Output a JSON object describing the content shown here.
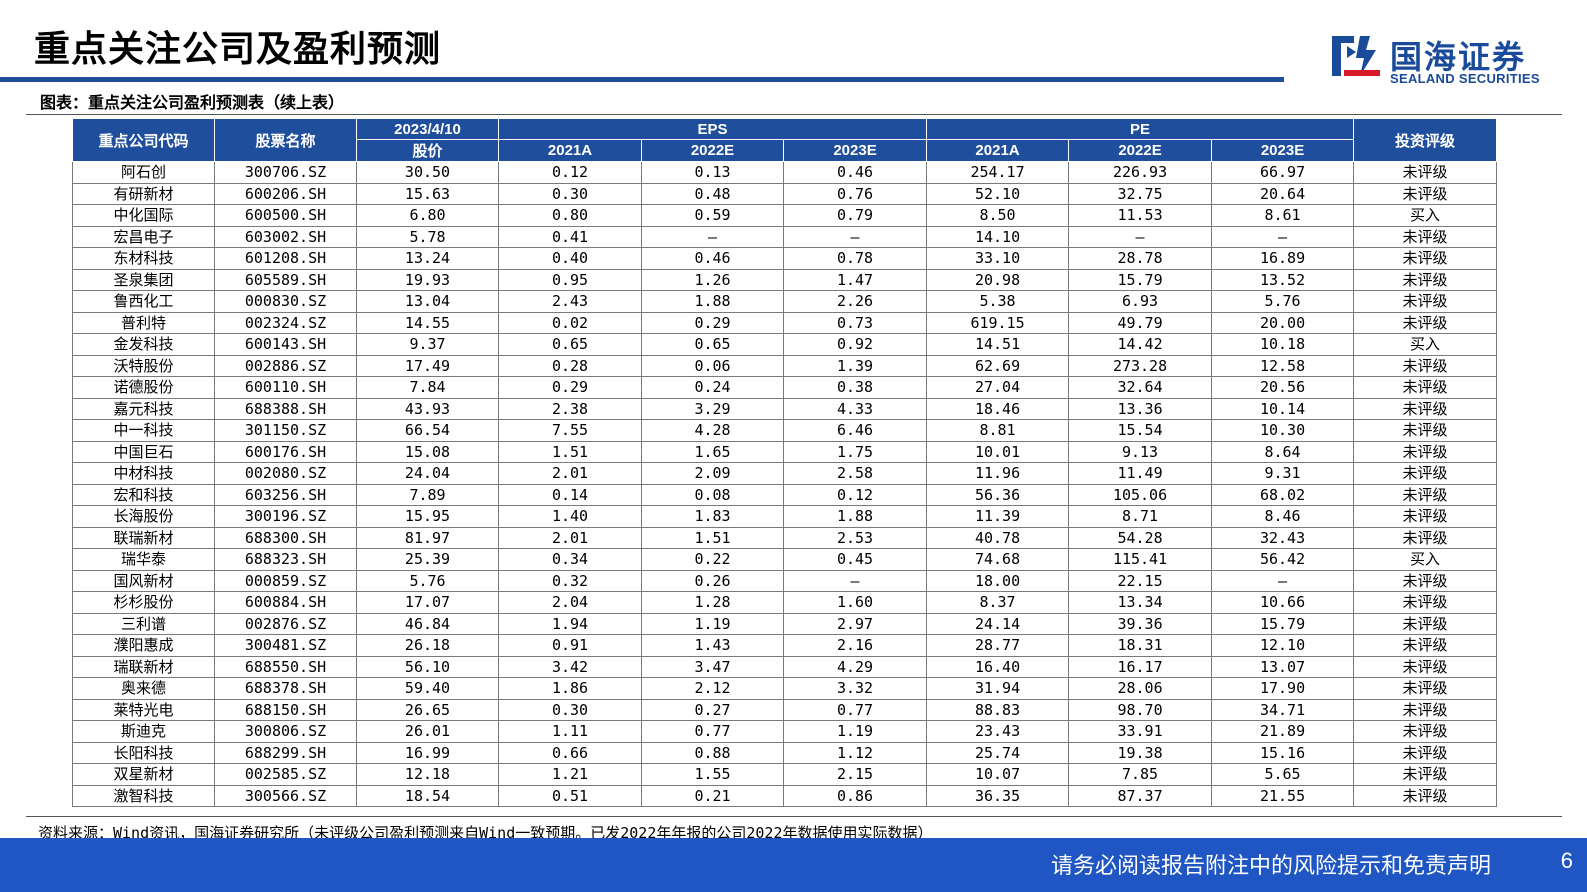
{
  "header": {
    "title": "重点关注公司及盈利预测",
    "logo_cn": "国海证券",
    "logo_en": "SEALAND SECURITIES"
  },
  "table_caption": "图表：重点关注公司盈利预测表（续上表）",
  "table": {
    "headers": {
      "code": "重点公司代码",
      "name": "股票名称",
      "date": "2023/4/10",
      "price": "股价",
      "eps": "EPS",
      "pe": "PE",
      "rating": "投资评级",
      "years": [
        "2021A",
        "2022E",
        "2023E"
      ]
    },
    "rows": [
      [
        "阿石创",
        "300706.SZ",
        "30.50",
        "0.12",
        "0.13",
        "0.46",
        "254.17",
        "226.93",
        "66.97",
        "未评级"
      ],
      [
        "有研新材",
        "600206.SH",
        "15.63",
        "0.30",
        "0.48",
        "0.76",
        "52.10",
        "32.75",
        "20.64",
        "未评级"
      ],
      [
        "中化国际",
        "600500.SH",
        "6.80",
        "0.80",
        "0.59",
        "0.79",
        "8.50",
        "11.53",
        "8.61",
        "买入"
      ],
      [
        "宏昌电子",
        "603002.SH",
        "5.78",
        "0.41",
        "–",
        "–",
        "14.10",
        "–",
        "–",
        "未评级"
      ],
      [
        "东材科技",
        "601208.SH",
        "13.24",
        "0.40",
        "0.46",
        "0.78",
        "33.10",
        "28.78",
        "16.89",
        "未评级"
      ],
      [
        "圣泉集团",
        "605589.SH",
        "19.93",
        "0.95",
        "1.26",
        "1.47",
        "20.98",
        "15.79",
        "13.52",
        "未评级"
      ],
      [
        "鲁西化工",
        "000830.SZ",
        "13.04",
        "2.43",
        "1.88",
        "2.26",
        "5.38",
        "6.93",
        "5.76",
        "未评级"
      ],
      [
        "普利特",
        "002324.SZ",
        "14.55",
        "0.02",
        "0.29",
        "0.73",
        "619.15",
        "49.79",
        "20.00",
        "未评级"
      ],
      [
        "金发科技",
        "600143.SH",
        "9.37",
        "0.65",
        "0.65",
        "0.92",
        "14.51",
        "14.42",
        "10.18",
        "买入"
      ],
      [
        "沃特股份",
        "002886.SZ",
        "17.49",
        "0.28",
        "0.06",
        "1.39",
        "62.69",
        "273.28",
        "12.58",
        "未评级"
      ],
      [
        "诺德股份",
        "600110.SH",
        "7.84",
        "0.29",
        "0.24",
        "0.38",
        "27.04",
        "32.64",
        "20.56",
        "未评级"
      ],
      [
        "嘉元科技",
        "688388.SH",
        "43.93",
        "2.38",
        "3.29",
        "4.33",
        "18.46",
        "13.36",
        "10.14",
        "未评级"
      ],
      [
        "中一科技",
        "301150.SZ",
        "66.54",
        "7.55",
        "4.28",
        "6.46",
        "8.81",
        "15.54",
        "10.30",
        "未评级"
      ],
      [
        "中国巨石",
        "600176.SH",
        "15.08",
        "1.51",
        "1.65",
        "1.75",
        "10.01",
        "9.13",
        "8.64",
        "未评级"
      ],
      [
        "中材科技",
        "002080.SZ",
        "24.04",
        "2.01",
        "2.09",
        "2.58",
        "11.96",
        "11.49",
        "9.31",
        "未评级"
      ],
      [
        "宏和科技",
        "603256.SH",
        "7.89",
        "0.14",
        "0.08",
        "0.12",
        "56.36",
        "105.06",
        "68.02",
        "未评级"
      ],
      [
        "长海股份",
        "300196.SZ",
        "15.95",
        "1.40",
        "1.83",
        "1.88",
        "11.39",
        "8.71",
        "8.46",
        "未评级"
      ],
      [
        "联瑞新材",
        "688300.SH",
        "81.97",
        "2.01",
        "1.51",
        "2.53",
        "40.78",
        "54.28",
        "32.43",
        "未评级"
      ],
      [
        "瑞华泰",
        "688323.SH",
        "25.39",
        "0.34",
        "0.22",
        "0.45",
        "74.68",
        "115.41",
        "56.42",
        "买入"
      ],
      [
        "国风新材",
        "000859.SZ",
        "5.76",
        "0.32",
        "0.26",
        "–",
        "18.00",
        "22.15",
        "–",
        "未评级"
      ],
      [
        "杉杉股份",
        "600884.SH",
        "17.07",
        "2.04",
        "1.28",
        "1.60",
        "8.37",
        "13.34",
        "10.66",
        "未评级"
      ],
      [
        "三利谱",
        "002876.SZ",
        "46.84",
        "1.94",
        "1.19",
        "2.97",
        "24.14",
        "39.36",
        "15.79",
        "未评级"
      ],
      [
        "濮阳惠成",
        "300481.SZ",
        "26.18",
        "0.91",
        "1.43",
        "2.16",
        "28.77",
        "18.31",
        "12.10",
        "未评级"
      ],
      [
        "瑞联新材",
        "688550.SH",
        "56.10",
        "3.42",
        "3.47",
        "4.29",
        "16.40",
        "16.17",
        "13.07",
        "未评级"
      ],
      [
        "奥来德",
        "688378.SH",
        "59.40",
        "1.86",
        "2.12",
        "3.32",
        "31.94",
        "28.06",
        "17.90",
        "未评级"
      ],
      [
        "莱特光电",
        "688150.SH",
        "26.65",
        "0.30",
        "0.27",
        "0.77",
        "88.83",
        "98.70",
        "34.71",
        "未评级"
      ],
      [
        "斯迪克",
        "300806.SZ",
        "26.01",
        "1.11",
        "0.77",
        "1.19",
        "23.43",
        "33.91",
        "21.89",
        "未评级"
      ],
      [
        "长阳科技",
        "688299.SH",
        "16.99",
        "0.66",
        "0.88",
        "1.12",
        "25.74",
        "19.38",
        "15.16",
        "未评级"
      ],
      [
        "双星新材",
        "002585.SZ",
        "12.18",
        "1.21",
        "1.55",
        "2.15",
        "10.07",
        "7.85",
        "5.65",
        "未评级"
      ],
      [
        "激智科技",
        "300566.SZ",
        "18.54",
        "0.51",
        "0.21",
        "0.86",
        "36.35",
        "87.37",
        "21.55",
        "未评级"
      ]
    ]
  },
  "source_note": "资料来源：Wind资讯，国海证券研究所（未评级公司盈利预测来自Wind一致预期。已发2022年年报的公司2022年数据使用实际数据）",
  "footer": {
    "disclaimer": "请务必阅读报告附注中的风险提示和免责声明",
    "page_number": "6"
  },
  "colors": {
    "brand_blue": "#1f4e9c",
    "footer_blue": "#1f56c4"
  }
}
